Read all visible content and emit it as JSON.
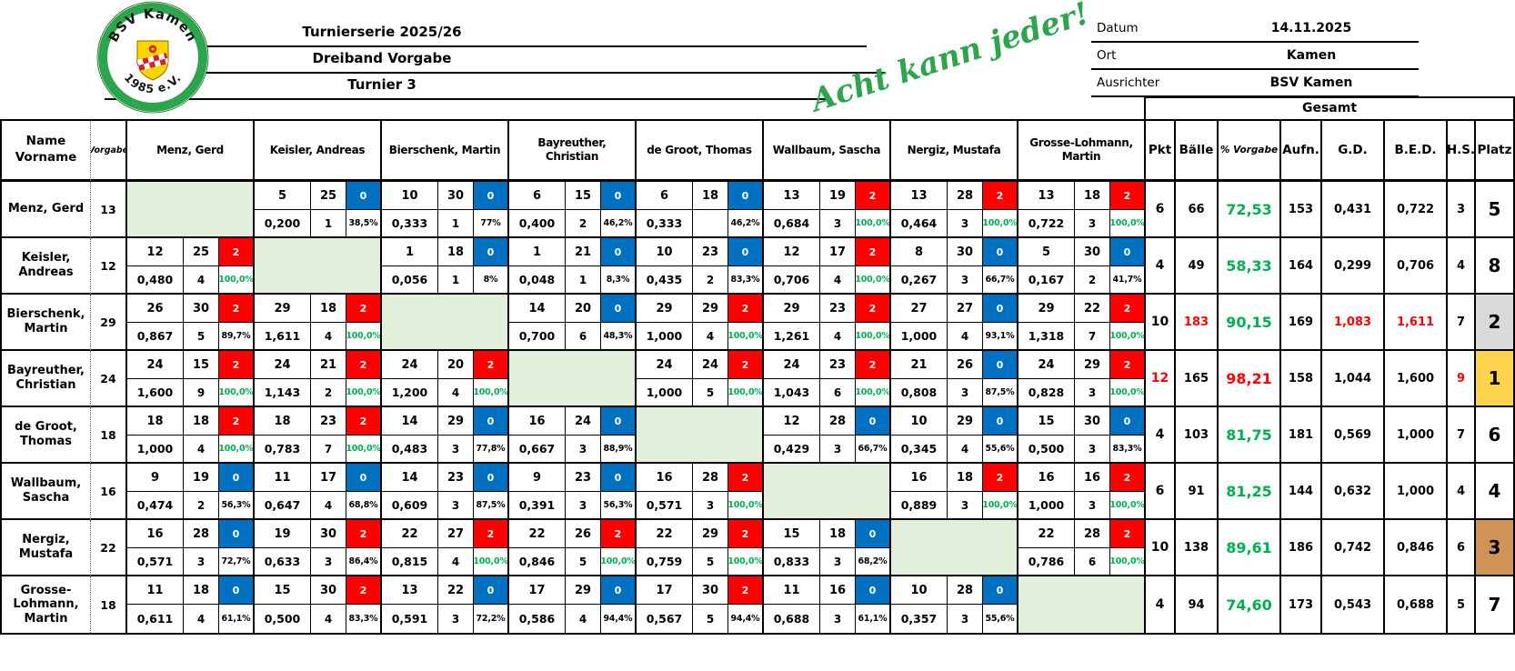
{
  "header": {
    "logo": {
      "club": "BSV Kamen",
      "year": "1985 e.V."
    },
    "titles": [
      "Turnierserie 2025/26",
      "Dreiband Vorgabe",
      "Turnier 3"
    ],
    "slogan": "Acht kann jeder!",
    "info": [
      {
        "label": "Datum",
        "value": "14.11.2025"
      },
      {
        "label": "Ort",
        "value": "Kamen"
      },
      {
        "label": "Ausrichter",
        "value": "BSV Kamen"
      }
    ]
  },
  "colors": {
    "win_red": "#ff0000",
    "loss_blue": "#0070c0",
    "diag_green": "#e2efda",
    "accent_green": "#00b050",
    "gold": "#ffd34d",
    "silver": "#d9d9d9",
    "bronze": "#cf9455",
    "logo_green": "#2ca54d"
  },
  "table": {
    "name_header": "Name\nVorname",
    "vorgabe_header": "Vorgabe",
    "gesamt_header": "Gesamt",
    "gesamt_columns": [
      "Pkt",
      "Bälle",
      "% Vorgabe",
      "Aufn.",
      "G.D.",
      "B.E.D.",
      "H.S.",
      "Platz"
    ],
    "players": [
      {
        "display": "Menz, Gerd",
        "col_label": "Menz, Gerd",
        "vorgabe": "13"
      },
      {
        "display": "Keisler,\nAndreas",
        "col_label": "Keisler, Andreas",
        "vorgabe": "12"
      },
      {
        "display": "Bierschenk,\nMartin",
        "col_label": "Bierschenk, Martin",
        "vorgabe": "29"
      },
      {
        "display": "Bayreuther,\nChristian",
        "col_label": "Bayreuther,\nChristian",
        "vorgabe": "24"
      },
      {
        "display": "de Groot,\nThomas",
        "col_label": "de Groot, Thomas",
        "vorgabe": "18"
      },
      {
        "display": "Wallbaum,\nSascha",
        "col_label": "Wallbaum, Sascha",
        "vorgabe": "16"
      },
      {
        "display": "Nergiz,\nMustafa",
        "col_label": "Nergiz, Mustafa",
        "vorgabe": "22"
      },
      {
        "display": "Grosse-\nLohmann,\nMartin",
        "col_label": "Grosse-Lohmann,\nMartin",
        "vorgabe": "18"
      }
    ],
    "matrix": [
      [
        null,
        [
          "5",
          "25",
          "0",
          "0,200",
          "1",
          "38,5%"
        ],
        [
          "10",
          "30",
          "0",
          "0,333",
          "1",
          "77%"
        ],
        [
          "6",
          "15",
          "0",
          "0,400",
          "2",
          "46,2%"
        ],
        [
          "6",
          "18",
          "0",
          "0,333",
          "",
          "46,2%"
        ],
        [
          "13",
          "19",
          "2",
          "0,684",
          "3",
          "100,0%"
        ],
        [
          "13",
          "28",
          "2",
          "0,464",
          "3",
          "100,0%"
        ],
        [
          "13",
          "18",
          "2",
          "0,722",
          "3",
          "100,0%"
        ]
      ],
      [
        [
          "12",
          "25",
          "2",
          "0,480",
          "4",
          "100,0%"
        ],
        null,
        [
          "1",
          "18",
          "0",
          "0,056",
          "1",
          "8%"
        ],
        [
          "1",
          "21",
          "0",
          "0,048",
          "1",
          "8,3%"
        ],
        [
          "10",
          "23",
          "0",
          "0,435",
          "2",
          "83,3%"
        ],
        [
          "12",
          "17",
          "2",
          "0,706",
          "4",
          "100,0%"
        ],
        [
          "8",
          "30",
          "0",
          "0,267",
          "3",
          "66,7%"
        ],
        [
          "5",
          "30",
          "0",
          "0,167",
          "2",
          "41,7%"
        ]
      ],
      [
        [
          "26",
          "30",
          "2",
          "0,867",
          "5",
          "89,7%"
        ],
        [
          "29",
          "18",
          "2",
          "1,611",
          "4",
          "100,0%"
        ],
        null,
        [
          "14",
          "20",
          "0",
          "0,700",
          "6",
          "48,3%"
        ],
        [
          "29",
          "29",
          "2",
          "1,000",
          "4",
          "100,0%"
        ],
        [
          "29",
          "23",
          "2",
          "1,261",
          "4",
          "100,0%"
        ],
        [
          "27",
          "27",
          "0",
          "1,000",
          "4",
          "93,1%"
        ],
        [
          "29",
          "22",
          "2",
          "1,318",
          "7",
          "100,0%"
        ]
      ],
      [
        [
          "24",
          "15",
          "2",
          "1,600",
          "9",
          "100,0%"
        ],
        [
          "24",
          "21",
          "2",
          "1,143",
          "2",
          "100,0%"
        ],
        [
          "24",
          "20",
          "2",
          "1,200",
          "4",
          "100,0%"
        ],
        null,
        [
          "24",
          "24",
          "2",
          "1,000",
          "5",
          "100,0%"
        ],
        [
          "24",
          "23",
          "2",
          "1,043",
          "6",
          "100,0%"
        ],
        [
          "21",
          "26",
          "0",
          "0,808",
          "3",
          "87,5%"
        ],
        [
          "24",
          "29",
          "2",
          "0,828",
          "3",
          "100,0%"
        ]
      ],
      [
        [
          "18",
          "18",
          "2",
          "1,000",
          "4",
          "100,0%"
        ],
        [
          "18",
          "23",
          "2",
          "0,783",
          "7",
          "100,0%"
        ],
        [
          "14",
          "29",
          "0",
          "0,483",
          "3",
          "77,8%"
        ],
        [
          "16",
          "24",
          "0",
          "0,667",
          "3",
          "88,9%"
        ],
        null,
        [
          "12",
          "28",
          "0",
          "0,429",
          "3",
          "66,7%"
        ],
        [
          "10",
          "29",
          "0",
          "0,345",
          "4",
          "55,6%"
        ],
        [
          "15",
          "30",
          "0",
          "0,500",
          "3",
          "83,3%"
        ]
      ],
      [
        [
          "9",
          "19",
          "0",
          "0,474",
          "2",
          "56,3%"
        ],
        [
          "11",
          "17",
          "0",
          "0,647",
          "4",
          "68,8%"
        ],
        [
          "14",
          "23",
          "0",
          "0,609",
          "3",
          "87,5%"
        ],
        [
          "9",
          "23",
          "0",
          "0,391",
          "3",
          "56,3%"
        ],
        [
          "16",
          "28",
          "2",
          "0,571",
          "3",
          "100,0%"
        ],
        null,
        [
          "16",
          "18",
          "2",
          "0,889",
          "3",
          "100,0%"
        ],
        [
          "16",
          "16",
          "2",
          "1,000",
          "3",
          "100,0%"
        ]
      ],
      [
        [
          "16",
          "28",
          "0",
          "0,571",
          "3",
          "72,7%"
        ],
        [
          "19",
          "30",
          "2",
          "0,633",
          "3",
          "86,4%"
        ],
        [
          "22",
          "27",
          "2",
          "0,815",
          "4",
          "100,0%"
        ],
        [
          "22",
          "26",
          "2",
          "0,846",
          "5",
          "100,0%"
        ],
        [
          "22",
          "29",
          "2",
          "0,759",
          "5",
          "100,0%"
        ],
        [
          "15",
          "18",
          "0",
          "0,833",
          "3",
          "68,2%"
        ],
        null,
        [
          "22",
          "28",
          "2",
          "0,786",
          "6",
          "100,0%"
        ]
      ],
      [
        [
          "11",
          "18",
          "0",
          "0,611",
          "4",
          "61,1%"
        ],
        [
          "15",
          "30",
          "2",
          "0,500",
          "4",
          "83,3%"
        ],
        [
          "13",
          "22",
          "0",
          "0,591",
          "3",
          "72,2%"
        ],
        [
          "17",
          "29",
          "0",
          "0,586",
          "4",
          "94,4%"
        ],
        [
          "17",
          "30",
          "2",
          "0,567",
          "5",
          "94,4%"
        ],
        [
          "11",
          "16",
          "0",
          "0,688",
          "3",
          "61,1%"
        ],
        [
          "10",
          "28",
          "0",
          "0,357",
          "3",
          "55,6%"
        ],
        null
      ]
    ],
    "totals": [
      {
        "pkt": "6",
        "baelle": "66",
        "pct": "72,53",
        "aufn": "153",
        "gd": "0,431",
        "bed": "0,722",
        "hs": "3",
        "platz": "5"
      },
      {
        "pkt": "4",
        "baelle": "49",
        "pct": "58,33",
        "aufn": "164",
        "gd": "0,299",
        "bed": "0,706",
        "hs": "4",
        "platz": "8"
      },
      {
        "pkt": "10",
        "baelle": "183",
        "baelle_red": true,
        "pct": "90,15",
        "aufn": "169",
        "gd": "1,083",
        "gd_red": true,
        "bed": "1,611",
        "bed_red": true,
        "hs": "7",
        "platz": "2",
        "platz_bg": "silver"
      },
      {
        "pkt": "12",
        "pkt_red": true,
        "baelle": "165",
        "pct": "98,21",
        "pct_red": true,
        "aufn": "158",
        "gd": "1,044",
        "bed": "1,600",
        "hs": "9",
        "hs_red": true,
        "platz": "1",
        "platz_bg": "gold"
      },
      {
        "pkt": "4",
        "baelle": "103",
        "pct": "81,75",
        "aufn": "181",
        "gd": "0,569",
        "bed": "1,000",
        "hs": "7",
        "platz": "6"
      },
      {
        "pkt": "6",
        "baelle": "91",
        "pct": "81,25",
        "aufn": "144",
        "gd": "0,632",
        "bed": "1,000",
        "hs": "4",
        "platz": "4"
      },
      {
        "pkt": "10",
        "baelle": "138",
        "pct": "89,61",
        "aufn": "186",
        "gd": "0,742",
        "bed": "0,846",
        "hs": "6",
        "platz": "3",
        "platz_bg": "bronze"
      },
      {
        "pkt": "4",
        "baelle": "94",
        "pct": "74,60",
        "aufn": "173",
        "gd": "0,543",
        "bed": "0,688",
        "hs": "5",
        "platz": "7"
      }
    ]
  }
}
